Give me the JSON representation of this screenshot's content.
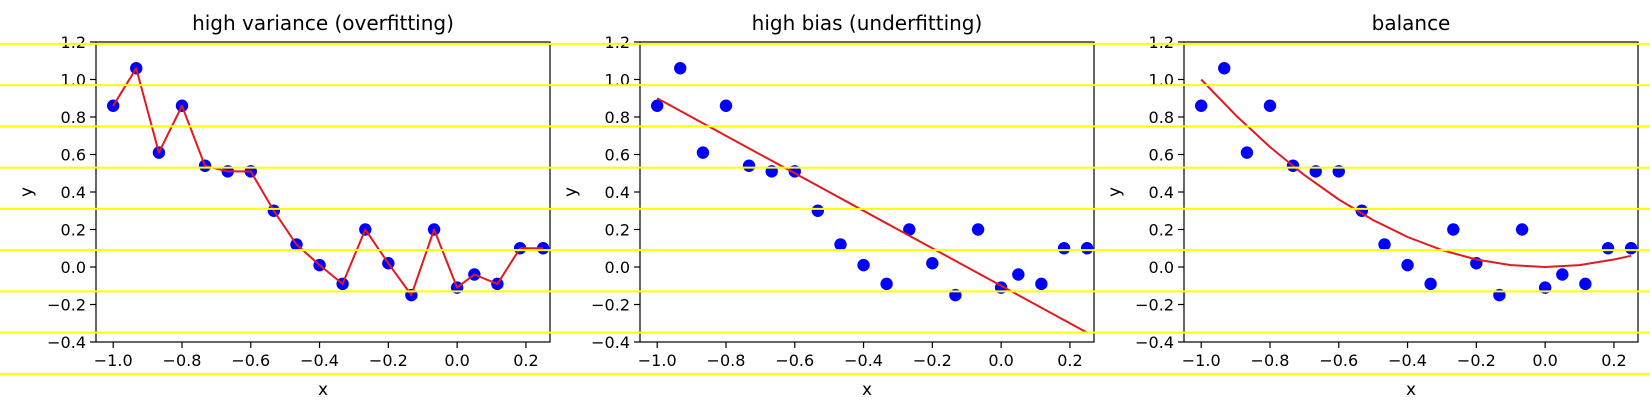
{
  "chart_data": [
    {
      "type": "scatter",
      "title": "high variance (overfitting)",
      "xlabel": "x",
      "ylabel": "y",
      "xlim": [
        -1.05,
        0.27
      ],
      "ylim": [
        -0.4,
        1.2
      ],
      "xticks": [
        "−1.0",
        "−0.8",
        "−0.6",
        "−0.4",
        "−0.2",
        "0.0",
        "0.2"
      ],
      "yticks": [
        "−0.4",
        "−0.2",
        "0.0",
        "0.2",
        "0.4",
        "0.6",
        "0.8",
        "1.0",
        "1.2"
      ],
      "grid": false,
      "points_color": "#0000ff",
      "line_color": "#e31a1c",
      "x": [
        -1.0,
        -0.933,
        -0.867,
        -0.8,
        -0.733,
        -0.667,
        -0.6,
        -0.533,
        -0.467,
        -0.4,
        -0.333,
        -0.267,
        -0.2,
        -0.133,
        -0.067,
        0.0,
        0.05,
        0.117,
        0.183,
        0.25
      ],
      "y": [
        0.86,
        1.06,
        0.61,
        0.86,
        0.54,
        0.51,
        0.51,
        0.3,
        0.12,
        0.01,
        -0.09,
        0.2,
        0.02,
        -0.15,
        0.2,
        -0.11,
        -0.04,
        -0.09,
        0.1,
        0.1
      ],
      "fit_x": [
        -1.0,
        -0.933,
        -0.867,
        -0.8,
        -0.733,
        -0.667,
        -0.6,
        -0.533,
        -0.467,
        -0.4,
        -0.333,
        -0.267,
        -0.2,
        -0.133,
        -0.067,
        0.0,
        0.05,
        0.117,
        0.183,
        0.25
      ],
      "fit_y": [
        0.86,
        1.06,
        0.61,
        0.86,
        0.54,
        0.51,
        0.51,
        0.3,
        0.12,
        0.01,
        -0.09,
        0.2,
        0.02,
        -0.15,
        0.2,
        -0.11,
        -0.04,
        -0.09,
        0.1,
        0.1
      ]
    },
    {
      "type": "scatter",
      "title": "high bias (underfitting)",
      "xlabel": "x",
      "ylabel": "y",
      "xlim": [
        -1.05,
        0.27
      ],
      "ylim": [
        -0.4,
        1.2
      ],
      "xticks": [
        "−1.0",
        "−0.8",
        "−0.6",
        "−0.4",
        "−0.2",
        "0.0",
        "0.2"
      ],
      "yticks": [
        "−0.4",
        "−0.2",
        "0.0",
        "0.2",
        "0.4",
        "0.6",
        "0.8",
        "1.0",
        "1.2"
      ],
      "grid": false,
      "points_color": "#0000ff",
      "line_color": "#e31a1c",
      "x": [
        -1.0,
        -0.933,
        -0.867,
        -0.8,
        -0.733,
        -0.667,
        -0.6,
        -0.533,
        -0.467,
        -0.4,
        -0.333,
        -0.267,
        -0.2,
        -0.133,
        -0.067,
        0.0,
        0.05,
        0.117,
        0.183,
        0.25
      ],
      "y": [
        0.86,
        1.06,
        0.61,
        0.86,
        0.54,
        0.51,
        0.51,
        0.3,
        0.12,
        0.01,
        -0.09,
        0.2,
        0.02,
        -0.15,
        0.2,
        -0.11,
        -0.04,
        -0.09,
        0.1,
        0.1
      ],
      "fit_x": [
        -1.0,
        0.25
      ],
      "fit_y": [
        0.9,
        -0.35
      ]
    },
    {
      "type": "scatter",
      "title": "balance",
      "xlabel": "x",
      "ylabel": "y",
      "xlim": [
        -1.05,
        0.27
      ],
      "ylim": [
        -0.4,
        1.2
      ],
      "xticks": [
        "−1.0",
        "−0.8",
        "−0.6",
        "−0.4",
        "−0.2",
        "0.0",
        "0.2"
      ],
      "yticks": [
        "−0.4",
        "−0.2",
        "0.0",
        "0.2",
        "0.4",
        "0.6",
        "0.8",
        "1.0",
        "1.2"
      ],
      "grid": false,
      "points_color": "#0000ff",
      "line_color": "#e31a1c",
      "x": [
        -1.0,
        -0.933,
        -0.867,
        -0.8,
        -0.733,
        -0.667,
        -0.6,
        -0.533,
        -0.467,
        -0.4,
        -0.333,
        -0.267,
        -0.2,
        -0.133,
        -0.067,
        0.0,
        0.05,
        0.117,
        0.183,
        0.25
      ],
      "y": [
        0.86,
        1.06,
        0.61,
        0.86,
        0.54,
        0.51,
        0.51,
        0.3,
        0.12,
        0.01,
        -0.09,
        0.2,
        0.02,
        -0.15,
        0.2,
        -0.11,
        -0.04,
        -0.09,
        0.1,
        0.1
      ],
      "fit_x": [
        -1.0,
        -0.9,
        -0.8,
        -0.7,
        -0.6,
        -0.5,
        -0.4,
        -0.3,
        -0.2,
        -0.1,
        0.0,
        0.1,
        0.2,
        0.25
      ],
      "fit_y": [
        1.0,
        0.81,
        0.64,
        0.49,
        0.36,
        0.25,
        0.16,
        0.09,
        0.04,
        0.01,
        0.0,
        0.01,
        0.04,
        0.06
      ]
    }
  ],
  "overlay": {
    "stripe_color": "#ffff00",
    "stripe_levels": [
      1.19,
      0.97,
      0.75,
      0.53,
      0.31,
      0.09,
      -0.13,
      -0.35,
      -0.57,
      -0.79
    ]
  }
}
